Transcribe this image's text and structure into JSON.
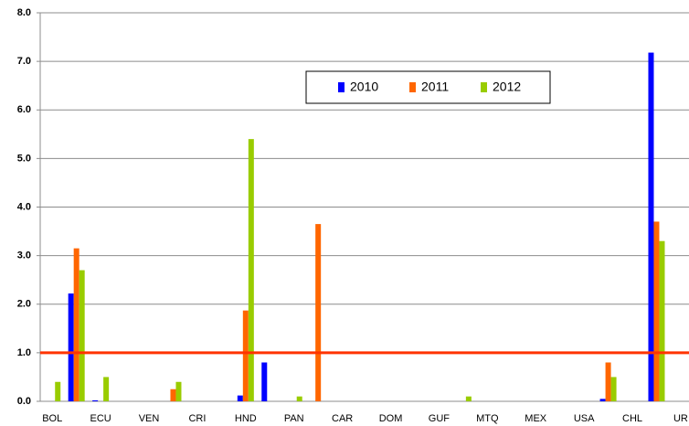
{
  "chart_data": {
    "type": "bar",
    "categories": [
      "BOL",
      null,
      "ECU",
      null,
      "VEN",
      null,
      "CRI",
      null,
      "HND",
      null,
      "PAN",
      null,
      "CAR",
      null,
      "DOM",
      null,
      "GUF",
      null,
      "MTQ",
      null,
      "MEX",
      null,
      "USA",
      null,
      "CHL",
      null,
      "UR"
    ],
    "series": [
      {
        "name": "2010",
        "color": "#0000ff",
        "values": [
          0,
          2.22,
          0.02,
          0,
          0,
          0,
          0,
          0,
          0.12,
          0.8,
          0,
          0,
          0,
          0,
          0,
          0,
          0,
          0,
          0,
          0,
          0,
          0,
          0,
          0.05,
          0,
          7.18,
          0
        ]
      },
      {
        "name": "2011",
        "color": "#ff6600",
        "values": [
          0,
          3.15,
          0,
          0,
          0,
          0.25,
          0,
          0,
          1.87,
          0,
          0,
          3.65,
          0,
          0,
          0,
          0,
          0,
          0,
          0,
          0,
          0,
          0,
          0,
          0.8,
          0,
          3.7,
          0
        ]
      },
      {
        "name": "2012",
        "color": "#99cc00",
        "values": [
          0.4,
          2.7,
          0.5,
          0,
          0,
          0.4,
          0,
          0,
          5.4,
          0,
          0.1,
          0,
          0,
          0,
          0,
          0,
          0,
          0.1,
          0,
          0,
          0,
          0,
          0,
          0.5,
          0,
          3.3,
          0
        ]
      }
    ],
    "ylim": [
      0,
      8
    ],
    "yticks": [
      {
        "value": 0,
        "label": "0.0"
      },
      {
        "value": 1,
        "label": "1.0"
      },
      {
        "value": 2,
        "label": "2.0"
      },
      {
        "value": 3,
        "label": "3.0"
      },
      {
        "value": 4,
        "label": "4.0"
      },
      {
        "value": 5,
        "label": "5.0"
      },
      {
        "value": 6,
        "label": "6.0"
      },
      {
        "value": 7,
        "label": "7.0"
      },
      {
        "value": 8,
        "label": "8.0"
      }
    ],
    "grid": true,
    "reference_line": {
      "value": 1,
      "color": "#ff3300"
    },
    "legend": "top"
  }
}
